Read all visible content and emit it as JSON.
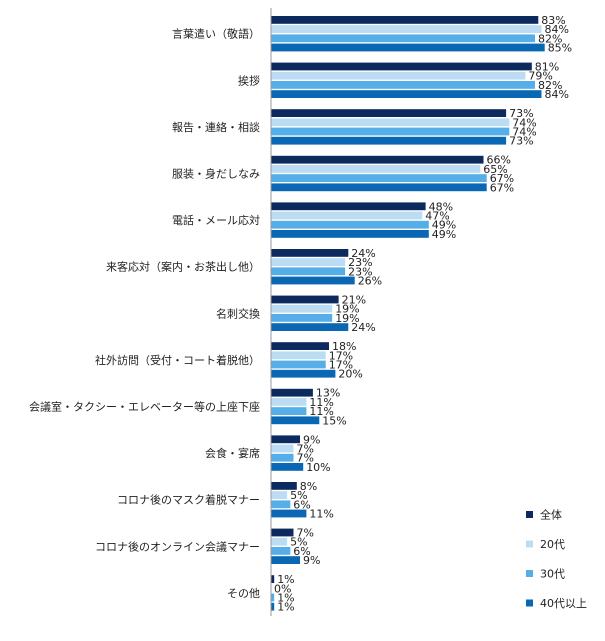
{
  "chart_data": {
    "type": "bar",
    "orientation": "horizontal",
    "title": "",
    "xlabel": "",
    "ylabel": "",
    "value_suffix": "%",
    "xlim": [
      0,
      100
    ],
    "grid": false,
    "legend_position": "bottom-right",
    "categories": [
      "言葉遣い（敬語）",
      "挨拶",
      "報告・連絡・相談",
      "服装・身だしなみ",
      "電話・メール応対",
      "来客応対（案内・お茶出し他）",
      "名刺交換",
      "社外訪問（受付・コート着脱他）",
      "会議室・タクシー・エレベーター等の上座下座",
      "会食・宴席",
      "コロナ後のマスク着脱マナー",
      "コロナ後のオンライン会議マナー",
      "その他"
    ],
    "series": [
      {
        "name": "全体",
        "color": "#0d2a5e",
        "values": [
          83,
          81,
          73,
          66,
          48,
          24,
          21,
          18,
          13,
          9,
          8,
          7,
          1
        ]
      },
      {
        "name": "20代",
        "color": "#bcdcf4",
        "values": [
          84,
          79,
          74,
          65,
          47,
          23,
          19,
          17,
          11,
          7,
          5,
          5,
          0
        ]
      },
      {
        "name": "30代",
        "color": "#55aee8",
        "values": [
          82,
          82,
          74,
          67,
          49,
          23,
          19,
          17,
          11,
          7,
          6,
          6,
          1
        ]
      },
      {
        "name": "40代以上",
        "color": "#0a67b4",
        "values": [
          85,
          84,
          73,
          67,
          49,
          26,
          24,
          20,
          15,
          10,
          11,
          9,
          1
        ]
      }
    ]
  }
}
